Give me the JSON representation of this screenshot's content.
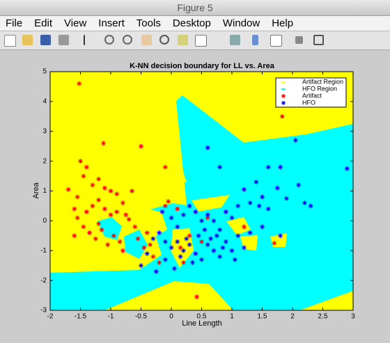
{
  "window": {
    "title": "Figure 5",
    "menu": [
      "File",
      "Edit",
      "View",
      "Insert",
      "Tools",
      "Desktop",
      "Window",
      "Help"
    ]
  },
  "chart_data": {
    "type": "scatter",
    "title": "K-NN decision boundary for LL vs. Area",
    "xlabel": "Line Length",
    "ylabel": "Area",
    "xlim": [
      -2,
      3
    ],
    "xticks": [
      -2,
      -1.5,
      -1,
      -0.5,
      0,
      0.5,
      1,
      1.5,
      2,
      2.5,
      3
    ],
    "ylim": [
      -3,
      5
    ],
    "yticks": [
      -3,
      -2,
      -1,
      0,
      1,
      2,
      3,
      4,
      5
    ],
    "legend": "upper right",
    "regions": [
      {
        "name": "Artifact Region",
        "color": "#ffff00"
      },
      {
        "name": "HFO Region",
        "color": "#00ffff"
      }
    ],
    "series": [
      {
        "name": "Artifact",
        "color": "#ff0000",
        "x": [
          -1.52,
          1.83,
          0.42,
          -1.12,
          -0.5,
          -0.1,
          -1.7,
          -1.5,
          -1.4,
          -1.45,
          -1.3,
          -1.2,
          -1.1,
          -1.0,
          -0.9,
          -0.8,
          -1.55,
          -1.6,
          -1.4,
          -1.3,
          -1.2,
          -1.1,
          -1.0,
          -0.9,
          -0.75,
          -0.7,
          -1.55,
          -1.45,
          -1.35,
          -1.25,
          -1.15,
          -1.05,
          -0.95,
          -0.85,
          -0.6,
          -0.55,
          -0.45,
          -0.3,
          -0.2,
          -0.1,
          -0.05,
          0.1,
          0.3,
          0.5,
          0.2,
          -0.65,
          1.7,
          1.2,
          0.6,
          -1.6,
          -1.2,
          -0.4,
          -0.8,
          -0.35,
          0.15
        ],
        "values": [
          4.6,
          3.5,
          -2.55,
          2.6,
          2.5,
          1.8,
          1.05,
          2.0,
          1.8,
          1.5,
          1.2,
          1.4,
          1.1,
          1.0,
          0.9,
          0.6,
          0.8,
          0.4,
          0.3,
          0.5,
          0.7,
          0.4,
          0.2,
          0.3,
          0.2,
          0.05,
          0.1,
          -0.2,
          -0.4,
          -0.6,
          -0.3,
          -0.8,
          -0.5,
          -0.7,
          -0.2,
          -0.6,
          -0.9,
          -1.2,
          -1.4,
          0.5,
          0.65,
          0.4,
          -0.5,
          -0.7,
          -1.4,
          1.0,
          -0.75,
          -0.2,
          0.1,
          -0.5,
          -0.1,
          -0.4,
          -1.0,
          -0.8,
          -0.9
        ]
      },
      {
        "name": "HFO",
        "color": "#0000ff",
        "x": [
          0.6,
          0.8,
          2.05,
          2.9,
          1.6,
          1.8,
          1.2,
          1.4,
          1.5,
          1.75,
          1.9,
          2.1,
          2.2,
          2.3,
          0.3,
          0.4,
          0.5,
          0.6,
          0.7,
          0.8,
          0.9,
          1.0,
          1.1,
          1.3,
          1.5,
          1.6,
          1.8,
          1.3,
          1.1,
          1.45,
          -0.2,
          -0.1,
          0.0,
          0.1,
          0.2,
          0.3,
          0.4,
          0.5,
          0.6,
          0.7,
          0.8,
          0.9,
          1.0,
          1.2,
          0.45,
          0.55,
          0.75,
          0.35,
          -0.5,
          -0.4,
          -0.3,
          -0.25,
          -0.1,
          0.05,
          0.15,
          0.25,
          0.65,
          0.85,
          1.05,
          0.1,
          0.0,
          -0.15,
          0.2
        ],
        "values": [
          2.45,
          1.8,
          2.7,
          1.75,
          1.8,
          1.8,
          1.05,
          1.3,
          0.8,
          1.1,
          0.75,
          1.2,
          0.6,
          0.5,
          0.5,
          0.3,
          0.0,
          0.2,
          0.0,
          -0.3,
          0.3,
          0.1,
          -0.5,
          -0.4,
          -0.2,
          0.4,
          -0.5,
          0.6,
          0.5,
          0.5,
          -0.4,
          -0.7,
          -0.9,
          -0.7,
          -1.0,
          -0.8,
          -1.1,
          -1.3,
          -0.8,
          -1.0,
          -1.2,
          -0.7,
          -1.0,
          -0.9,
          -0.5,
          -0.3,
          -0.5,
          -1.4,
          -1.5,
          -1.1,
          -0.6,
          -1.7,
          -1.3,
          -1.6,
          -1.2,
          -0.6,
          -0.6,
          -0.9,
          -1.3,
          -0.2,
          0.1,
          0.3,
          0.2
        ]
      }
    ]
  }
}
